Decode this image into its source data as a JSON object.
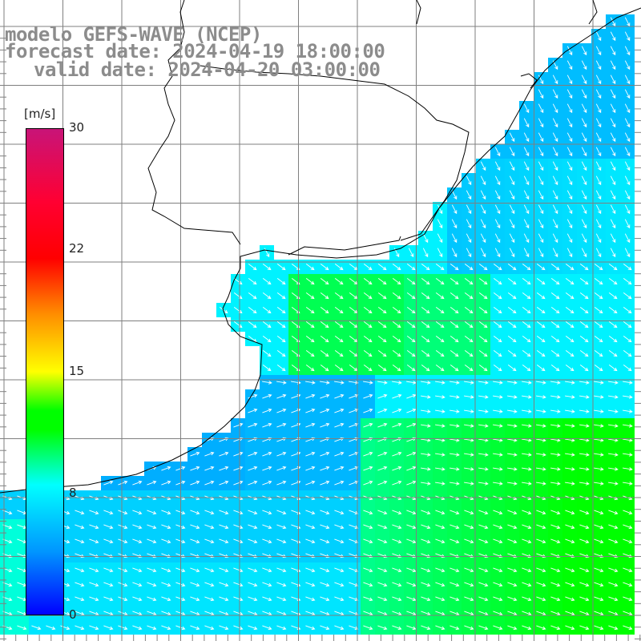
{
  "title": {
    "model": "modelo GEFS-WAVE (NCEP)",
    "forecast": "forecast date: 2024-04-19 18:00:00",
    "valid": "valid date: 2024-04-20 03:00:00"
  },
  "colorbar": {
    "unit": "[m/s]",
    "ticks": [
      {
        "value": 30,
        "label": "30"
      },
      {
        "value": 22,
        "label": "22"
      },
      {
        "value": 15,
        "label": "15"
      },
      {
        "value": 8,
        "label": "8"
      },
      {
        "value": 0,
        "label": "0"
      }
    ],
    "colors": [
      "#0000ff",
      "#0096ff",
      "#00ffff",
      "#00ff00",
      "#ffff00",
      "#ff8c00",
      "#ff0000",
      "#c81478"
    ]
  },
  "map": {
    "variable": "wind speed and direction",
    "land_color": "#ffffff",
    "coast_color": "#000000",
    "grid_color": "#7f7f7f",
    "arrow_color": "#ffffff"
  }
}
